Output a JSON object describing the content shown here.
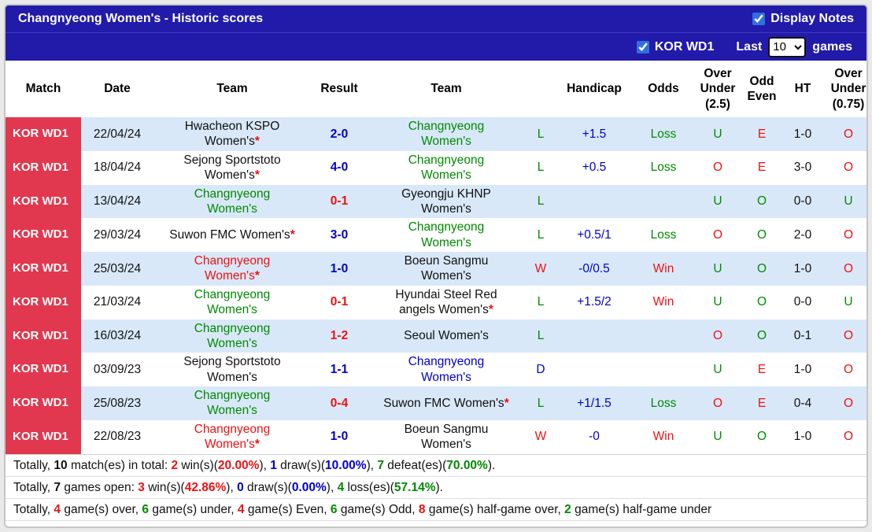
{
  "palette": {
    "green": "#008a00",
    "red": "#ee1111",
    "blue": "#0000cc",
    "black": "#111111",
    "match_badge": "#e1384f",
    "header_bar": "#221aa9",
    "row_stripe": "#d9e8f8",
    "checkbox_accent": "#2f6fe0"
  },
  "header": {
    "title": "Changnyeong Women's - Historic scores",
    "display_notes_label": "Display Notes",
    "display_notes_checked": true
  },
  "filter_bar": {
    "league_label": "KOR WD1",
    "league_checked": true,
    "last_label": "Last",
    "games_count": "10",
    "games_label": "games"
  },
  "table": {
    "columns": [
      {
        "key": "match",
        "label": "Match"
      },
      {
        "key": "date",
        "label": "Date"
      },
      {
        "key": "team1",
        "label": "Team"
      },
      {
        "key": "result",
        "label": "Result"
      },
      {
        "key": "team2",
        "label": "Team"
      },
      {
        "key": "letter",
        "label": ""
      },
      {
        "key": "handicap",
        "label": "Handicap"
      },
      {
        "key": "odds",
        "label": "Odds"
      },
      {
        "key": "ou25",
        "label": "Over Under (2.5)"
      },
      {
        "key": "oddeven",
        "label": "Odd Even"
      },
      {
        "key": "ht",
        "label": "HT"
      },
      {
        "key": "ou075",
        "label": "Over Under (0.75)"
      }
    ],
    "rows": [
      {
        "league": "KOR WD1",
        "date": "22/04/24",
        "team1": {
          "name": "Hwacheon KSPO Women's",
          "color": "black",
          "star": true
        },
        "result": {
          "text": "2-0",
          "color": "blue"
        },
        "team2": {
          "name": "Changnyeong Women's",
          "color": "green",
          "star": false
        },
        "letter": {
          "text": "L",
          "color": "green"
        },
        "handicap": {
          "text": "+1.5",
          "color": "blue"
        },
        "odds": {
          "text": "Loss",
          "color": "green"
        },
        "ou25": {
          "text": "U",
          "color": "green"
        },
        "oddeven": {
          "text": "E",
          "color": "red"
        },
        "ht": {
          "text": "1-0",
          "color": "black"
        },
        "ou075": {
          "text": "O",
          "color": "red"
        }
      },
      {
        "league": "KOR WD1",
        "date": "18/04/24",
        "team1": {
          "name": "Sejong Sportstoto Women's",
          "color": "black",
          "star": true
        },
        "result": {
          "text": "4-0",
          "color": "blue"
        },
        "team2": {
          "name": "Changnyeong Women's",
          "color": "green",
          "star": false
        },
        "letter": {
          "text": "L",
          "color": "green"
        },
        "handicap": {
          "text": "+0.5",
          "color": "blue"
        },
        "odds": {
          "text": "Loss",
          "color": "green"
        },
        "ou25": {
          "text": "O",
          "color": "red"
        },
        "oddeven": {
          "text": "E",
          "color": "red"
        },
        "ht": {
          "text": "3-0",
          "color": "black"
        },
        "ou075": {
          "text": "O",
          "color": "red"
        }
      },
      {
        "league": "KOR WD1",
        "date": "13/04/24",
        "team1": {
          "name": "Changnyeong Women's",
          "color": "green",
          "star": false
        },
        "result": {
          "text": "0-1",
          "color": "red"
        },
        "team2": {
          "name": "Gyeongju KHNP Women's",
          "color": "black",
          "star": false
        },
        "letter": {
          "text": "L",
          "color": "green"
        },
        "handicap": null,
        "odds": null,
        "ou25": {
          "text": "U",
          "color": "green"
        },
        "oddeven": {
          "text": "O",
          "color": "green"
        },
        "ht": {
          "text": "0-0",
          "color": "black"
        },
        "ou075": {
          "text": "U",
          "color": "green"
        }
      },
      {
        "league": "KOR WD1",
        "date": "29/03/24",
        "team1": {
          "name": "Suwon FMC Women's",
          "color": "black",
          "star": true
        },
        "result": {
          "text": "3-0",
          "color": "blue"
        },
        "team2": {
          "name": "Changnyeong Women's",
          "color": "green",
          "star": false
        },
        "letter": {
          "text": "L",
          "color": "green"
        },
        "handicap": {
          "text": "+0.5/1",
          "color": "blue"
        },
        "odds": {
          "text": "Loss",
          "color": "green"
        },
        "ou25": {
          "text": "O",
          "color": "red"
        },
        "oddeven": {
          "text": "O",
          "color": "green"
        },
        "ht": {
          "text": "2-0",
          "color": "black"
        },
        "ou075": {
          "text": "O",
          "color": "red"
        }
      },
      {
        "league": "KOR WD1",
        "date": "25/03/24",
        "team1": {
          "name": "Changnyeong Women's",
          "color": "red",
          "star": true
        },
        "result": {
          "text": "1-0",
          "color": "blue"
        },
        "team2": {
          "name": "Boeun Sangmu Women's",
          "color": "black",
          "star": false
        },
        "letter": {
          "text": "W",
          "color": "red"
        },
        "handicap": {
          "text": "-0/0.5",
          "color": "blue"
        },
        "odds": {
          "text": "Win",
          "color": "red"
        },
        "ou25": {
          "text": "U",
          "color": "green"
        },
        "oddeven": {
          "text": "O",
          "color": "green"
        },
        "ht": {
          "text": "1-0",
          "color": "black"
        },
        "ou075": {
          "text": "O",
          "color": "red"
        }
      },
      {
        "league": "KOR WD1",
        "date": "21/03/24",
        "team1": {
          "name": "Changnyeong Women's",
          "color": "green",
          "star": false
        },
        "result": {
          "text": "0-1",
          "color": "red"
        },
        "team2": {
          "name": "Hyundai Steel Red angels Women's",
          "color": "black",
          "star": true
        },
        "letter": {
          "text": "L",
          "color": "green"
        },
        "handicap": {
          "text": "+1.5/2",
          "color": "blue"
        },
        "odds": {
          "text": "Win",
          "color": "red"
        },
        "ou25": {
          "text": "U",
          "color": "green"
        },
        "oddeven": {
          "text": "O",
          "color": "green"
        },
        "ht": {
          "text": "0-0",
          "color": "black"
        },
        "ou075": {
          "text": "U",
          "color": "green"
        }
      },
      {
        "league": "KOR WD1",
        "date": "16/03/24",
        "team1": {
          "name": "Changnyeong Women's",
          "color": "green",
          "star": false
        },
        "result": {
          "text": "1-2",
          "color": "red"
        },
        "team2": {
          "name": "Seoul Women's",
          "color": "black",
          "star": false
        },
        "letter": {
          "text": "L",
          "color": "green"
        },
        "handicap": null,
        "odds": null,
        "ou25": {
          "text": "O",
          "color": "red"
        },
        "oddeven": {
          "text": "O",
          "color": "green"
        },
        "ht": {
          "text": "0-1",
          "color": "black"
        },
        "ou075": {
          "text": "O",
          "color": "red"
        }
      },
      {
        "league": "KOR WD1",
        "date": "03/09/23",
        "team1": {
          "name": "Sejong Sportstoto Women's",
          "color": "black",
          "star": false
        },
        "result": {
          "text": "1-1",
          "color": "blue"
        },
        "team2": {
          "name": "Changnyeong Women's",
          "color": "blue",
          "star": false
        },
        "letter": {
          "text": "D",
          "color": "blue"
        },
        "handicap": null,
        "odds": null,
        "ou25": {
          "text": "U",
          "color": "green"
        },
        "oddeven": {
          "text": "E",
          "color": "red"
        },
        "ht": {
          "text": "1-0",
          "color": "black"
        },
        "ou075": {
          "text": "O",
          "color": "red"
        }
      },
      {
        "league": "KOR WD1",
        "date": "25/08/23",
        "team1": {
          "name": "Changnyeong Women's",
          "color": "green",
          "star": false
        },
        "result": {
          "text": "0-4",
          "color": "red"
        },
        "team2": {
          "name": "Suwon FMC Women's",
          "color": "black",
          "star": true
        },
        "letter": {
          "text": "L",
          "color": "green"
        },
        "handicap": {
          "text": "+1/1.5",
          "color": "blue"
        },
        "odds": {
          "text": "Loss",
          "color": "green"
        },
        "ou25": {
          "text": "O",
          "color": "red"
        },
        "oddeven": {
          "text": "E",
          "color": "red"
        },
        "ht": {
          "text": "0-4",
          "color": "black"
        },
        "ou075": {
          "text": "O",
          "color": "red"
        }
      },
      {
        "league": "KOR WD1",
        "date": "22/08/23",
        "team1": {
          "name": "Changnyeong Women's",
          "color": "red",
          "star": true
        },
        "result": {
          "text": "1-0",
          "color": "blue"
        },
        "team2": {
          "name": "Boeun Sangmu Women's",
          "color": "black",
          "star": false
        },
        "letter": {
          "text": "W",
          "color": "red"
        },
        "handicap": {
          "text": "-0",
          "color": "blue"
        },
        "odds": {
          "text": "Win",
          "color": "red"
        },
        "ou25": {
          "text": "U",
          "color": "green"
        },
        "oddeven": {
          "text": "O",
          "color": "green"
        },
        "ht": {
          "text": "1-0",
          "color": "black"
        },
        "ou075": {
          "text": "O",
          "color": "red"
        }
      }
    ]
  },
  "summary_lines": [
    {
      "segments": [
        {
          "text": "Totally, ",
          "color": "black",
          "bold": false
        },
        {
          "text": "10",
          "color": "black",
          "bold": true
        },
        {
          "text": " match(es) in total: ",
          "color": "black",
          "bold": false
        },
        {
          "text": "2",
          "color": "red",
          "bold": true
        },
        {
          "text": " win(s)(",
          "color": "black",
          "bold": false
        },
        {
          "text": "20.00%",
          "color": "red",
          "bold": true
        },
        {
          "text": "), ",
          "color": "black",
          "bold": false
        },
        {
          "text": "1",
          "color": "blue",
          "bold": true
        },
        {
          "text": " draw(s)(",
          "color": "black",
          "bold": false
        },
        {
          "text": "10.00%",
          "color": "blue",
          "bold": true
        },
        {
          "text": "), ",
          "color": "black",
          "bold": false
        },
        {
          "text": "7",
          "color": "green",
          "bold": true
        },
        {
          "text": " defeat(es)(",
          "color": "black",
          "bold": false
        },
        {
          "text": "70.00%",
          "color": "green",
          "bold": true
        },
        {
          "text": ").",
          "color": "black",
          "bold": false
        }
      ]
    },
    {
      "segments": [
        {
          "text": "Totally, ",
          "color": "black",
          "bold": false
        },
        {
          "text": "7",
          "color": "black",
          "bold": true
        },
        {
          "text": " games open: ",
          "color": "black",
          "bold": false
        },
        {
          "text": "3",
          "color": "red",
          "bold": true
        },
        {
          "text": " win(s)(",
          "color": "black",
          "bold": false
        },
        {
          "text": "42.86%",
          "color": "red",
          "bold": true
        },
        {
          "text": "), ",
          "color": "black",
          "bold": false
        },
        {
          "text": "0",
          "color": "blue",
          "bold": true
        },
        {
          "text": " draw(s)(",
          "color": "black",
          "bold": false
        },
        {
          "text": "0.00%",
          "color": "blue",
          "bold": true
        },
        {
          "text": "), ",
          "color": "black",
          "bold": false
        },
        {
          "text": "4",
          "color": "green",
          "bold": true
        },
        {
          "text": " loss(es)(",
          "color": "black",
          "bold": false
        },
        {
          "text": "57.14%",
          "color": "green",
          "bold": true
        },
        {
          "text": ").",
          "color": "black",
          "bold": false
        }
      ]
    },
    {
      "segments": [
        {
          "text": "Totally, ",
          "color": "black",
          "bold": false
        },
        {
          "text": "4",
          "color": "red",
          "bold": true
        },
        {
          "text": " game(s) over, ",
          "color": "black",
          "bold": false
        },
        {
          "text": "6",
          "color": "green",
          "bold": true
        },
        {
          "text": " game(s) under, ",
          "color": "black",
          "bold": false
        },
        {
          "text": "4",
          "color": "red",
          "bold": true
        },
        {
          "text": " game(s) Even, ",
          "color": "black",
          "bold": false
        },
        {
          "text": "6",
          "color": "green",
          "bold": true
        },
        {
          "text": " game(s) Odd, ",
          "color": "black",
          "bold": false
        },
        {
          "text": "8",
          "color": "red",
          "bold": true
        },
        {
          "text": " game(s) half-game over, ",
          "color": "black",
          "bold": false
        },
        {
          "text": "2",
          "color": "green",
          "bold": true
        },
        {
          "text": " game(s) half-game under",
          "color": "black",
          "bold": false
        }
      ]
    }
  ]
}
